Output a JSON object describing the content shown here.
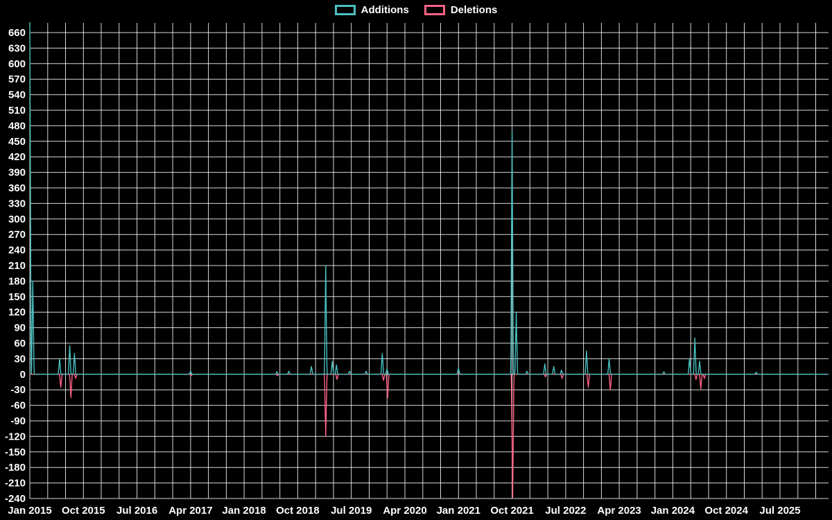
{
  "page": {
    "background_color": "#000000",
    "text_color": "#ffffff"
  },
  "legend": {
    "items": [
      {
        "label": "Additions",
        "color": "#4bc0c0"
      },
      {
        "label": "Deletions",
        "color": "#ff6384"
      }
    ]
  },
  "chart_data": {
    "type": "line",
    "title": "",
    "legend_position": "top",
    "background_color": "#000000",
    "grid_color": "#ffffff",
    "text_color": "#ffffff",
    "x_axis": {
      "labels": [
        "Jan 2015",
        "Oct 2015",
        "Jul 2016",
        "Apr 2017",
        "Jan 2018",
        "Oct 2018",
        "Jul 2019",
        "Apr 2020",
        "Jan 2021",
        "Oct 2021",
        "Jul 2022",
        "Apr 2023",
        "Jan 2024",
        "Oct 2024",
        "Jul 2025"
      ],
      "label_interval_months": 9,
      "gridline_interval_months": 3,
      "domain_months": [
        0,
        134
      ]
    },
    "y_axis": {
      "min": -240,
      "max": 660,
      "tick_step": 30,
      "ticks": [
        660,
        630,
        600,
        570,
        540,
        510,
        480,
        450,
        420,
        390,
        360,
        330,
        300,
        270,
        240,
        210,
        180,
        150,
        120,
        90,
        60,
        30,
        0,
        -30,
        -60,
        -90,
        -120,
        -150,
        -180,
        -210,
        -240
      ]
    },
    "series": [
      {
        "name": "Additions",
        "color": "#4bc0c0",
        "baseline": 0,
        "spikes_months_value": [
          [
            0,
            680
          ],
          [
            0.5,
            180
          ],
          [
            5,
            30
          ],
          [
            6.7,
            55
          ],
          [
            7.5,
            40
          ],
          [
            27,
            6
          ],
          [
            41.5,
            5
          ],
          [
            43.5,
            6
          ],
          [
            47.3,
            15
          ],
          [
            49.7,
            210
          ],
          [
            50.8,
            25
          ],
          [
            51.5,
            18
          ],
          [
            53.7,
            6
          ],
          [
            56.5,
            6
          ],
          [
            59.2,
            40
          ],
          [
            60,
            10
          ],
          [
            72,
            12
          ],
          [
            81,
            470
          ],
          [
            81.7,
            120
          ],
          [
            83.5,
            6
          ],
          [
            86.5,
            20
          ],
          [
            88,
            15
          ],
          [
            89.3,
            8
          ],
          [
            93.5,
            45
          ],
          [
            97.3,
            30
          ],
          [
            106.5,
            5
          ],
          [
            110.8,
            30
          ],
          [
            111.7,
            70
          ],
          [
            112.5,
            25
          ],
          [
            122,
            4
          ]
        ]
      },
      {
        "name": "Deletions",
        "color": "#ff6384",
        "baseline": 0,
        "spikes_months_value": [
          [
            5.2,
            -25
          ],
          [
            6.9,
            -45
          ],
          [
            7.7,
            -8
          ],
          [
            27.1,
            -3
          ],
          [
            41.6,
            -3
          ],
          [
            49.7,
            -120
          ],
          [
            51.6,
            -10
          ],
          [
            59.4,
            -12
          ],
          [
            60.1,
            -45
          ],
          [
            81.1,
            -238
          ],
          [
            86.6,
            -5
          ],
          [
            89.4,
            -8
          ],
          [
            93.8,
            -25
          ],
          [
            97.5,
            -30
          ],
          [
            111.9,
            -10
          ],
          [
            112.7,
            -28
          ],
          [
            113.3,
            -8
          ]
        ]
      }
    ]
  }
}
